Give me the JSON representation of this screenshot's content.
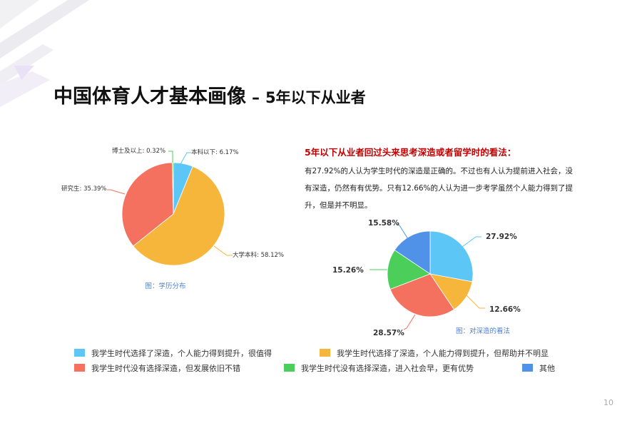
{
  "title": {
    "main": "中国体育人才基本画像",
    "dash": "–",
    "sub": "5年以下从业者"
  },
  "views": {
    "heading": "5年以下从业者回过头来思考深造或者留学时的看法：",
    "body": "有27.92%的人认为学生时代的深造是正确的。不过也有人认为提前进入社会，没有深造，仍然有有优势。只有12.66%的人认为进一步考学虽然个人能力得到了提升，但是并不明显。"
  },
  "chart_data": [
    {
      "type": "pie",
      "caption": "图：学历分布",
      "start_angle_deg": 0,
      "slices": [
        {
          "label": "本科以下: 6.17%",
          "value": 6.17,
          "color": "#5cc6f7"
        },
        {
          "label": "大学本科: 58.12%",
          "value": 58.12,
          "color": "#f6b53b"
        },
        {
          "label": "研究生: 35.39%",
          "value": 35.39,
          "color": "#f4705f"
        },
        {
          "label": "博士及以上: 0.32%",
          "value": 0.32,
          "color": "#4ccf5a"
        }
      ]
    },
    {
      "type": "pie",
      "caption": "图：对深造的看法",
      "start_angle_deg": 0,
      "slices": [
        {
          "label": "27.92%",
          "value": 27.92,
          "color": "#5cc6f7"
        },
        {
          "label": "12.66%",
          "value": 12.66,
          "color": "#f6b53b"
        },
        {
          "label": "28.57%",
          "value": 28.57,
          "color": "#f4705f"
        },
        {
          "label": "15.26%",
          "value": 15.26,
          "color": "#4ccf5a"
        },
        {
          "label": "15.58%",
          "value": 15.58,
          "color": "#4f92e8"
        }
      ]
    }
  ],
  "legend": [
    {
      "label": "我学生时代选择了深造，个人能力得到提升，很值得",
      "color": "#5cc6f7"
    },
    {
      "label": "我学生时代选择了深造，个人能力得到提升，但帮助并不明显",
      "color": "#f6b53b"
    },
    {
      "label": "我学生时代没有选择深造，但发展依旧不错",
      "color": "#f4705f"
    },
    {
      "label": "我学生时代没有选择深造，进入社会早，更有优势",
      "color": "#4ccf5a"
    },
    {
      "label": "其他",
      "color": "#4f92e8"
    }
  ],
  "page_number": "10"
}
